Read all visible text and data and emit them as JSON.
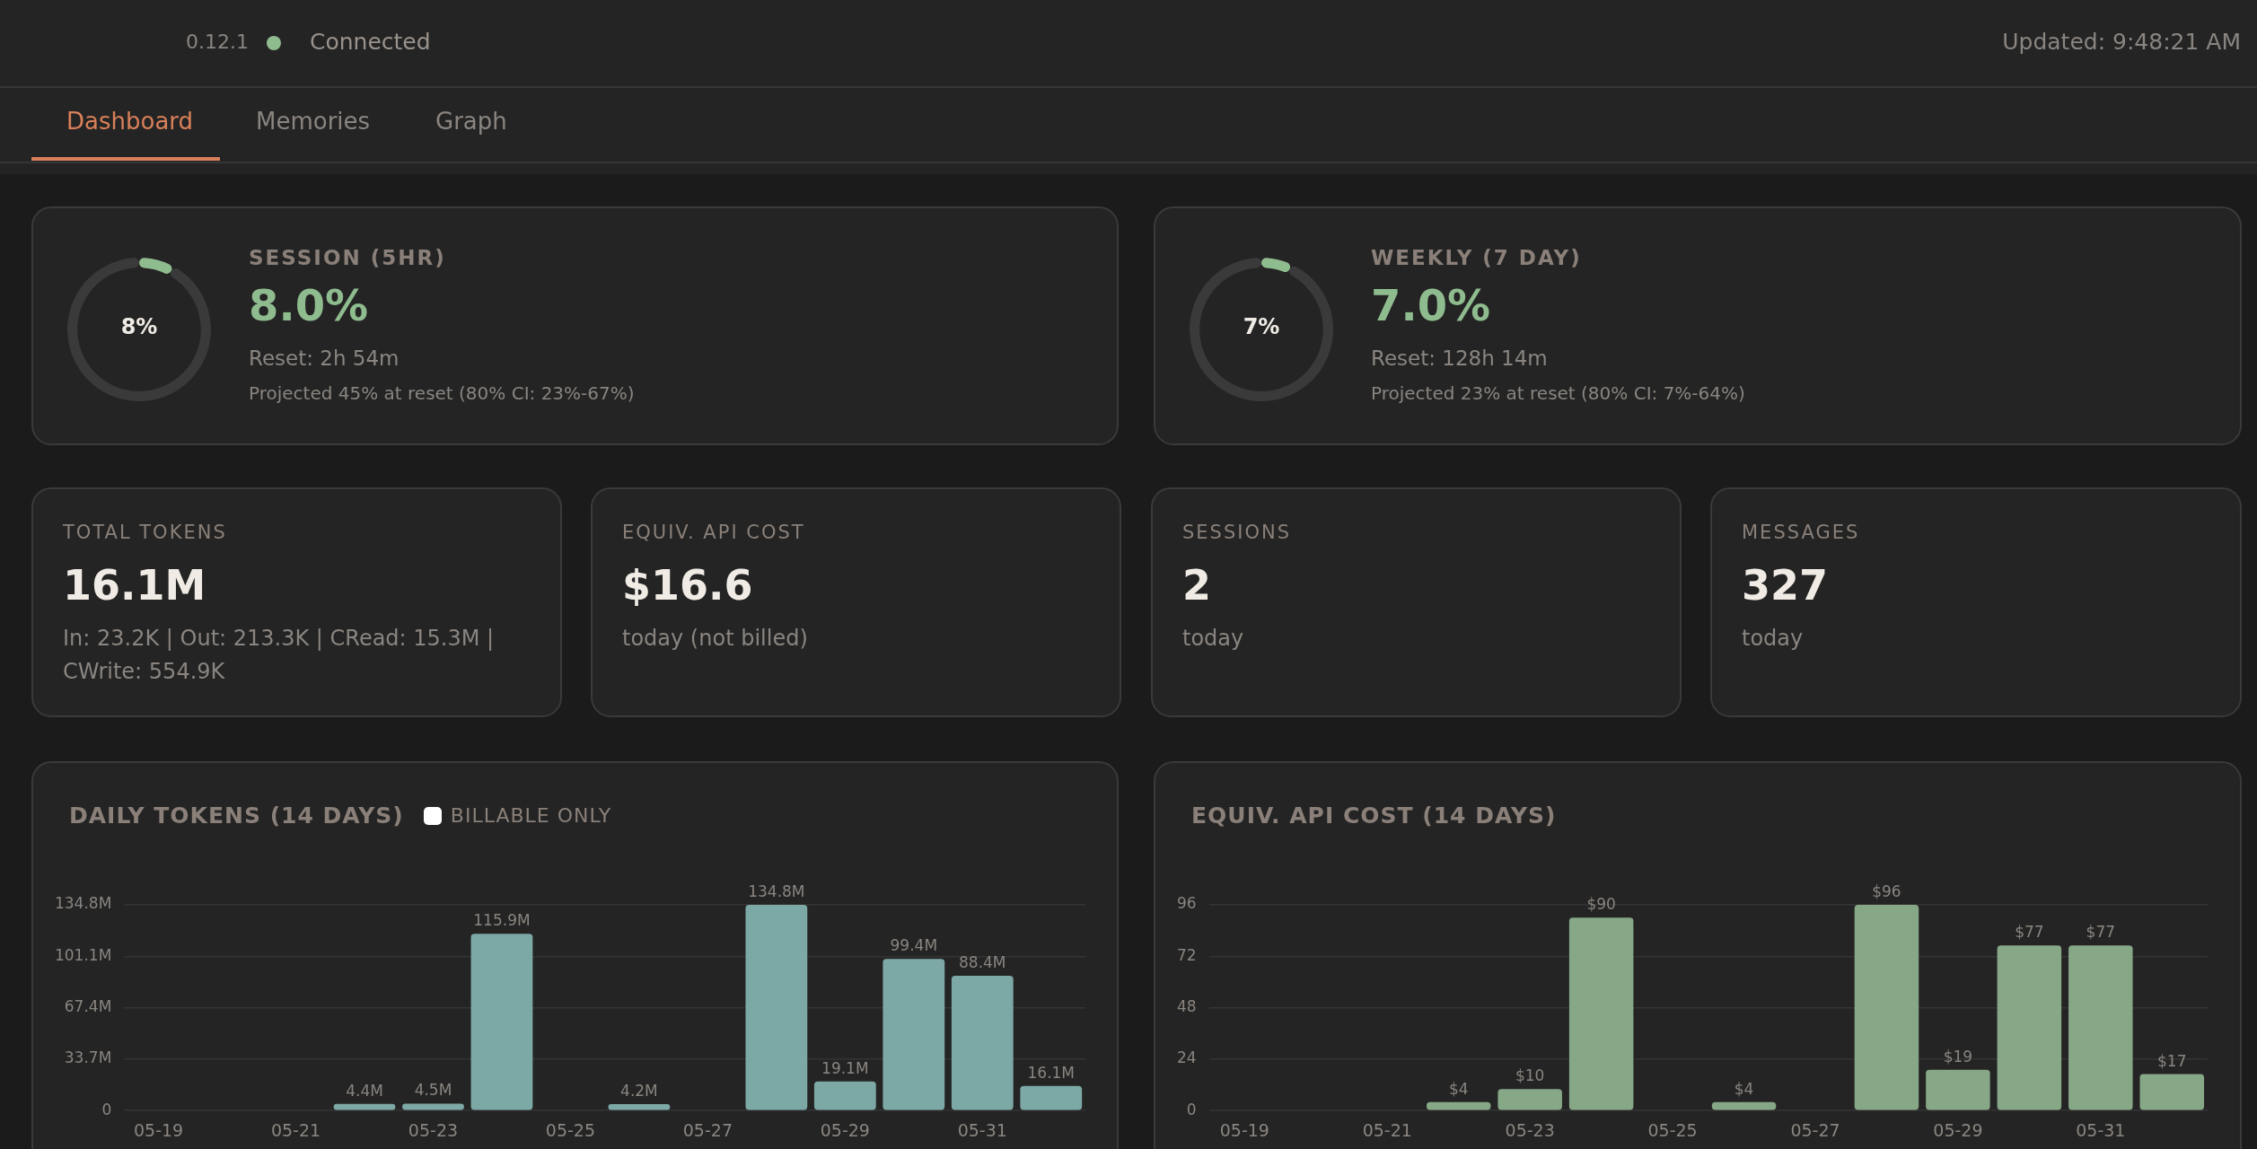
{
  "chart_data": [
    {
      "type": "other",
      "annotations": [
        "0.12.1",
        "Connected",
        "Updated: 9:48:21 AM",
        "Dashboard",
        "Memories",
        "Graph"
      ]
    },
    {
      "type": "donut",
      "title": "SESSION (5HR)",
      "subtitle": "8.0%",
      "categories": [
        null,
        null
      ],
      "values": [
        8,
        92
      ],
      "colors": [
        "#8fbc8f",
        "#3a3a3a"
      ],
      "annotations": [
        "8%",
        "Reset: 2h 54m",
        "Projected 45% at reset (80% CI: 23%-67%)"
      ]
    },
    {
      "type": "donut",
      "title": "WEEKLY (7 DAY)",
      "subtitle": "7.0%",
      "categories": [
        null,
        null
      ],
      "values": [
        7,
        93
      ],
      "colors": [
        "#8fbc8f",
        "#3a3a3a"
      ],
      "annotations": [
        "7%",
        "Reset: 128h 14m",
        "Projected 23% at reset (80% CI: 7%-64%)"
      ]
    },
    {
      "type": "other",
      "title": "TOTAL TOKENS",
      "subtitle": "16.1M",
      "annotations": [
        "In: 23.2K | Out: 213.3K | CRead: 15.3M |",
        "CWrite: 554.9K"
      ]
    },
    {
      "type": "other",
      "title": "EQUIV. API COST",
      "subtitle": "$16.6",
      "annotations": [
        "today (not billed)"
      ]
    },
    {
      "type": "other",
      "title": "SESSIONS",
      "subtitle": "2",
      "annotations": [
        "today"
      ]
    },
    {
      "type": "other",
      "title": "MESSAGES",
      "subtitle": "327",
      "annotations": [
        "today"
      ]
    },
    {
      "type": "bar",
      "title": "DAILY TOKENS (14 DAYS)",
      "annotations": [
        "BILLABLE ONLY"
      ],
      "categories": [
        "05-19",
        null,
        "05-21",
        null,
        "05-23",
        null,
        "05-25",
        null,
        "05-27",
        null,
        "05-29",
        null,
        "05-31",
        null
      ],
      "values": [
        null,
        null,
        null,
        4.4,
        4.5,
        115.9,
        null,
        4.2,
        null,
        134.8,
        19.1,
        99.4,
        88.4,
        16.1
      ],
      "value_labels": [
        null,
        null,
        null,
        "4.4M",
        "4.5M",
        "115.9M",
        null,
        "4.2M",
        null,
        "134.8M",
        "19.1M",
        "99.4M",
        "88.4M",
        "16.1M"
      ],
      "color": "#7ca8a5",
      "ylim": [
        0,
        134.8
      ],
      "yticks": [
        {
          "value": 0,
          "label": "0"
        },
        {
          "value": 33.7,
          "label": "33.7M"
        },
        {
          "value": 67.4,
          "label": "67.4M"
        },
        {
          "value": 101.1,
          "label": "101.1M"
        },
        {
          "value": 134.8,
          "label": "134.8M"
        }
      ],
      "grid": "y"
    },
    {
      "type": "bar",
      "title": "EQUIV. API COST (14 DAYS)",
      "categories": [
        "05-19",
        null,
        "05-21",
        null,
        "05-23",
        null,
        "05-25",
        null,
        "05-27",
        null,
        "05-29",
        null,
        "05-31",
        null
      ],
      "values": [
        null,
        null,
        null,
        4,
        10,
        90,
        null,
        4,
        null,
        96,
        19,
        77,
        77,
        17
      ],
      "value_labels": [
        null,
        null,
        null,
        "$4",
        "$10",
        "$90",
        null,
        "$4",
        null,
        "$96",
        "$19",
        "$77",
        "$77",
        "$17"
      ],
      "color": "#87a886",
      "ylim": [
        0,
        96
      ],
      "yticks": [
        0,
        24,
        48,
        72,
        96
      ],
      "grid": "y"
    }
  ]
}
